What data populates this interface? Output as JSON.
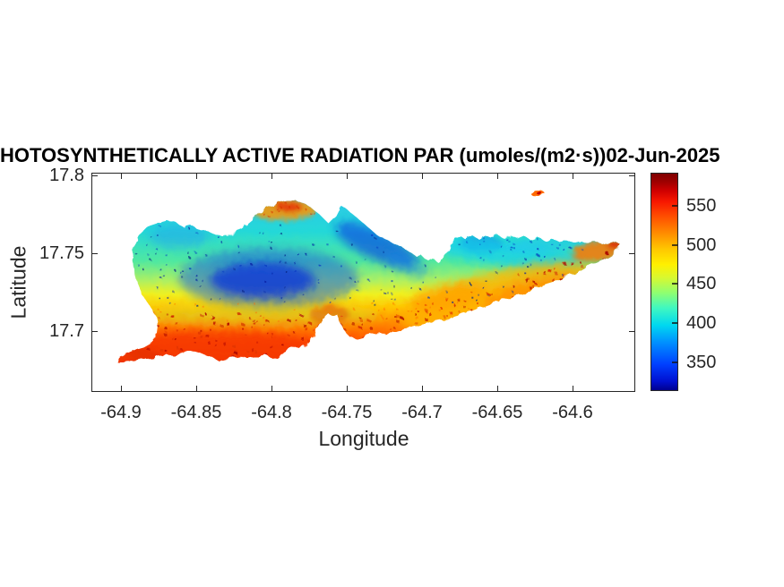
{
  "title": "HOTOSYNTHETICALLY ACTIVE RADIATION PAR (umoles/(m2·s))02-Jun-2025",
  "axes": {
    "xlabel": "Longitude",
    "ylabel": "Latitude",
    "x_tick_labels": [
      "-64.9",
      "-64.85",
      "-64.8",
      "-64.75",
      "-64.7",
      "-64.65",
      "-64.6"
    ],
    "y_tick_labels": [
      "17.8",
      "17.75",
      "17.7"
    ]
  },
  "colorbar": {
    "tick_labels": [
      "550",
      "500",
      "450",
      "400",
      "350"
    ]
  },
  "chart_data": {
    "type": "heatmap",
    "title": "HOTOSYNTHETICALLY ACTIVE RADIATION PAR (umoles/(m2·s))02-Jun-2025",
    "variable": "Photosynthetically Active Radiation (PAR)",
    "units": "umoles/(m2·s)",
    "date": "02-Jun-2025",
    "xlabel": "Longitude",
    "ylabel": "Latitude",
    "xlim": [
      -64.92,
      -64.558
    ],
    "ylim": [
      17.661,
      17.801
    ],
    "x_ticks": [
      -64.9,
      -64.85,
      -64.8,
      -64.75,
      -64.7,
      -64.65,
      -64.6
    ],
    "y_ticks": [
      17.7,
      17.75,
      17.8
    ],
    "colormap": "jet",
    "colorbar_ticks": [
      350,
      400,
      450,
      500,
      550
    ],
    "value_range_est": [
      310,
      595
    ],
    "region": "Island silhouette of St. Croix, U.S. Virgin Islands, plus small islet (Buck Island) to the northeast",
    "features": [
      {
        "area": "north-central interior basin",
        "par_est": "330-385 (lowest values, dark blue)"
      },
      {
        "area": "west coast fringe",
        "par_est": "395-435 (cyan)"
      },
      {
        "area": "north shore bump near lon -64.80",
        "par_est": "495-545 (orange/red patch)"
      },
      {
        "area": "mid-north coast streak lon -64.73 to -64.68",
        "par_est": "345-390 (dark blue)"
      },
      {
        "area": "northeast shore strip",
        "par_est": "395-430 (cyan)"
      },
      {
        "area": "south coastal band (whole island)",
        "par_est": "510-570 (orange/red with dark-red speckles)"
      },
      {
        "area": "southwest point (sandy spit)",
        "par_est": "510-560 (orange/red)"
      },
      {
        "area": "south-central bay lobe near lon -64.76",
        "par_est": "530-560 (red blob)"
      },
      {
        "area": "east end and Point Udall tip",
        "par_est": "495-560 (orange/red)"
      },
      {
        "area": "Buck Island islet",
        "par_est": "510-580 (orange, dark-red core)"
      }
    ],
    "legend_position": "right colorbar",
    "grid": false
  }
}
